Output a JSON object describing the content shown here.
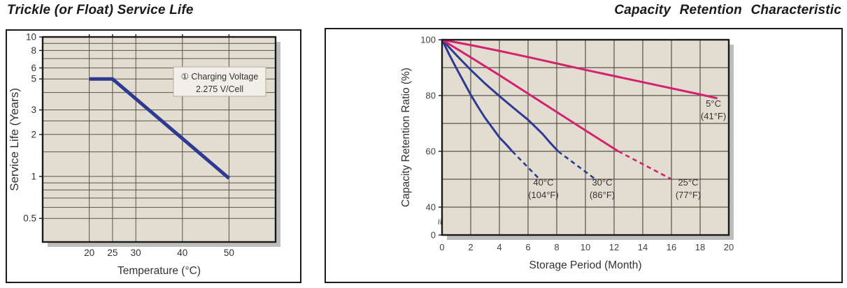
{
  "page": {
    "background": "#ffffff"
  },
  "colors": {
    "plot_background": "#e2ddd0",
    "grid": "#55544a",
    "plot_border": "#1a1a1a",
    "shadow": "#bdbdbd",
    "pink_line": "#d3226f",
    "blue_line": "#2e3a92",
    "text": "#333333",
    "annotation_box_fill": "#f1efe8",
    "annotation_box_border": "#b3b0a4"
  },
  "chart_data": [
    {
      "id": "service-life",
      "type": "line",
      "title": "Trickle (or Float) Service Life",
      "xlabel": "Temperature (°C)",
      "ylabel": "Service Life (Years)",
      "x_scale": "linear",
      "xlim": [
        10,
        60
      ],
      "x_ticks": [
        {
          "v": 20,
          "t": "20"
        },
        {
          "v": 25,
          "t": "25"
        },
        {
          "v": 30,
          "t": "30"
        },
        {
          "v": 40,
          "t": "40"
        },
        {
          "v": 50,
          "t": "50"
        }
      ],
      "y_scale": "log",
      "ylim": [
        0.34,
        10
      ],
      "y_ticks": [
        {
          "v": 10,
          "t": "10"
        },
        {
          "v": 8,
          "t": "8"
        },
        {
          "v": 6,
          "t": "6"
        },
        {
          "v": 5,
          "t": "5"
        },
        {
          "v": 3,
          "t": "3"
        },
        {
          "v": 2,
          "t": "2"
        },
        {
          "v": 1,
          "t": "1"
        },
        {
          "v": 0.5,
          "t": "0.5"
        }
      ],
      "y_gridlines": [
        10,
        9,
        8,
        7,
        6,
        5,
        4,
        3,
        2.5,
        2,
        1.5,
        1,
        0.9,
        0.8,
        0.7,
        0.6,
        0.5
      ],
      "grid": true,
      "annotation": {
        "line1": "① Charging Voltage",
        "line2": "2.275 V/Cell"
      },
      "series": [
        {
          "name": "service-life-vs-temperature",
          "color": "#2e3a92",
          "width": 5,
          "points": [
            [
              20,
              5
            ],
            [
              25,
              5
            ],
            [
              50,
              0.97
            ]
          ]
        }
      ]
    },
    {
      "id": "capacity-retention",
      "type": "line",
      "title": "Capacity Retention Characteristic",
      "xlabel": "Storage Period (Month)",
      "ylabel": "Capacity Retention Ratio (%)",
      "x_scale": "linear",
      "xlim": [
        0,
        20
      ],
      "x_ticks": [
        {
          "v": 0,
          "t": "0"
        },
        {
          "v": 2,
          "t": "2"
        },
        {
          "v": 4,
          "t": "4"
        },
        {
          "v": 6,
          "t": "6"
        },
        {
          "v": 8,
          "t": "8"
        },
        {
          "v": 10,
          "t": "10"
        },
        {
          "v": 12,
          "t": "12"
        },
        {
          "v": 14,
          "t": "14"
        },
        {
          "v": 16,
          "t": "16"
        },
        {
          "v": 18,
          "t": "18"
        },
        {
          "v": 20,
          "t": "20"
        }
      ],
      "y_scale": "linear-with-break",
      "ylim": [
        40,
        100
      ],
      "y_ticks": [
        {
          "v": 100,
          "t": "100"
        },
        {
          "v": 80,
          "t": "80"
        },
        {
          "v": 60,
          "t": "60"
        },
        {
          "v": 40,
          "t": "40"
        },
        {
          "v": 0,
          "t": "0"
        }
      ],
      "y_gridlines": [
        100,
        90,
        80,
        70,
        60,
        50,
        40
      ],
      "axis_break_symbol": "≈",
      "grid": true,
      "series": [
        {
          "name": "40C",
          "label": [
            "40°C",
            "(104°F)"
          ],
          "label_at": [
            7.07,
            47.75
          ],
          "color": "#2e3a92",
          "solid": [
            [
              0,
              100
            ],
            [
              0.5,
              94.7
            ],
            [
              1,
              89.8
            ],
            [
              1.5,
              85
            ],
            [
              2,
              80.3
            ],
            [
              2.5,
              76
            ],
            [
              3,
              72
            ],
            [
              3.5,
              68.5
            ],
            [
              4,
              65
            ],
            [
              4.5,
              62.3
            ],
            [
              4.9,
              60
            ]
          ],
          "dashed": [
            [
              4.9,
              60
            ],
            [
              6.8,
              50
            ]
          ]
        },
        {
          "name": "30C",
          "label": [
            "30°C",
            "(86°F)"
          ],
          "label_at": [
            11.17,
            47.75
          ],
          "color": "#2e3a92",
          "solid": [
            [
              0,
              100
            ],
            [
              1,
              94.5
            ],
            [
              2,
              89.2
            ],
            [
              3,
              84.3
            ],
            [
              4,
              79.8
            ],
            [
              5,
              75.5
            ],
            [
              6,
              71.3
            ],
            [
              7,
              66.3
            ],
            [
              7.5,
              63.3
            ],
            [
              8.1,
              60
            ]
          ],
          "dashed": [
            [
              8.1,
              60
            ],
            [
              10.7,
              50
            ]
          ]
        },
        {
          "name": "25C",
          "label": [
            "25°C",
            "(77°F)"
          ],
          "label_at": [
            17.17,
            47.75
          ],
          "color": "#d3226f",
          "solid": [
            [
              0,
              100
            ],
            [
              2,
              93.7
            ],
            [
              4,
              87.3
            ],
            [
              6,
              80.7
            ],
            [
              8,
              74.1
            ],
            [
              10,
              67.5
            ],
            [
              12.3,
              60
            ]
          ],
          "dashed": [
            [
              12.3,
              60
            ],
            [
              16,
              50
            ]
          ]
        },
        {
          "name": "5C",
          "label": [
            "5°C",
            "(41°F)"
          ],
          "label_at": [
            18.93,
            76
          ],
          "color": "#d3226f",
          "solid": [
            [
              0,
              100
            ],
            [
              2,
              98.1
            ],
            [
              4,
              96
            ],
            [
              6,
              93.8
            ],
            [
              8,
              91.5
            ],
            [
              10,
              89.2
            ],
            [
              12,
              87
            ],
            [
              14,
              84.8
            ],
            [
              16,
              82.6
            ],
            [
              18,
              80.4
            ],
            [
              19.2,
              79
            ]
          ],
          "dashed": []
        }
      ]
    }
  ]
}
